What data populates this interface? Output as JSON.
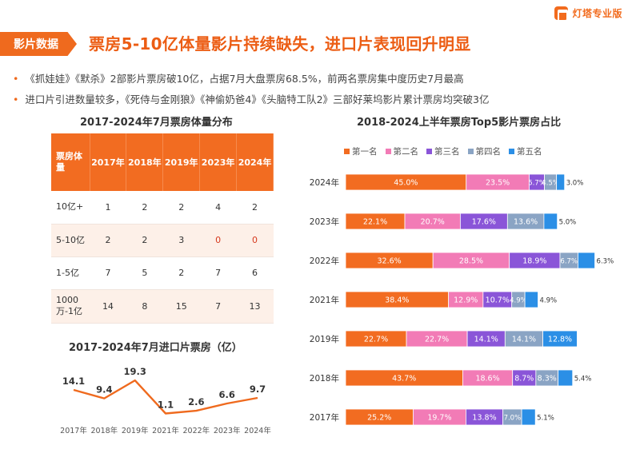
{
  "brand": {
    "name": "灯塔专业版",
    "icon": "lighthouse-logo-icon"
  },
  "header": {
    "tag": "影片数据",
    "title": "票房5-10亿体量影片持续缺失，进口片表现回升明显"
  },
  "bullets": [
    "《抓娃娃》《默杀》2部影片票房破10亿，占据7月大盘票房68.5%，前两名票房集中度历史7月最高",
    "进口片引进数量较多，《死侍与金刚狼》《神偷奶爸4》《头脑特工队2》三部好莱坞影片累计票房均突破3亿"
  ],
  "colors": {
    "accent": "#ef6a1e",
    "red_value": "#d63a1f"
  },
  "table": {
    "title": "2017-2024年7月票房体量分布",
    "header": [
      "票房体量",
      "2017年",
      "2018年",
      "2019年",
      "2023年",
      "2024年"
    ],
    "rows": [
      [
        "10亿+",
        "1",
        "2",
        "2",
        "4",
        "2"
      ],
      [
        "5-10亿",
        "2",
        "2",
        "3",
        "0",
        "0"
      ],
      [
        "1-5亿",
        "7",
        "5",
        "2",
        "7",
        "6"
      ],
      [
        "1000万-1亿",
        "14",
        "8",
        "15",
        "7",
        "13"
      ]
    ]
  },
  "chart_data": [
    {
      "type": "line",
      "title": "2017-2024年7月进口片票房（亿）",
      "x": [
        "2017年",
        "2018年",
        "2019年",
        "2021年",
        "2022年",
        "2023年",
        "2024年"
      ],
      "series": [
        {
          "values": [
            14.1,
            9.4,
            19.3,
            1.1,
            2.6,
            6.6,
            9.7
          ]
        }
      ],
      "ylim": [
        0,
        22
      ],
      "grid": false,
      "color": "#ef6a1e"
    },
    {
      "type": "bar",
      "orientation": "horizontal",
      "stacked": true,
      "title": "2018-2024上半年票房Top5影片票房占比",
      "categories": [
        "2024年",
        "2023年",
        "2022年",
        "2021年",
        "2019年",
        "2018年",
        "2017年"
      ],
      "series": [
        {
          "name": "第一名",
          "color": "#f26c21",
          "values": [
            45.0,
            22.1,
            32.6,
            38.4,
            22.7,
            43.7,
            25.2
          ]
        },
        {
          "name": "第二名",
          "color": "#f27bb6",
          "values": [
            23.5,
            20.7,
            28.5,
            12.9,
            22.7,
            18.6,
            19.7
          ]
        },
        {
          "name": "第三名",
          "color": "#8a55d8",
          "values": [
            5.7,
            17.6,
            18.9,
            10.7,
            14.1,
            8.7,
            13.8
          ]
        },
        {
          "name": "第四名",
          "color": "#8aa4c4",
          "values": [
            4.5,
            13.6,
            6.7,
            4.9,
            14.1,
            8.3,
            7.0
          ]
        },
        {
          "name": "第五名",
          "color": "#2b8fe6",
          "values": [
            3.0,
            5.0,
            6.3,
            4.9,
            12.8,
            5.4,
            5.1
          ]
        }
      ],
      "labels": [
        [
          "45.0%",
          "23.5%",
          "5.7%",
          "4.5%",
          "3.0%"
        ],
        [
          "22.1%",
          "20.7%",
          "17.6%",
          "13.6%",
          "5.0%"
        ],
        [
          "32.6%",
          "28.5%",
          "18.9%",
          "6.7%",
          "6.3%"
        ],
        [
          "38.4%",
          "12.9%",
          "10.7%",
          "4.9%",
          "4.9%"
        ],
        [
          "22.7%",
          "22.7%",
          "14.1%",
          "14.1%",
          "12.8%"
        ],
        [
          "43.7%",
          "18.6%",
          "8.7%",
          "8.3%",
          "5.4%"
        ],
        [
          "25.2%",
          "19.7%",
          "13.8%",
          "7.0%",
          "5.1%"
        ]
      ],
      "legend_position": "top"
    }
  ]
}
